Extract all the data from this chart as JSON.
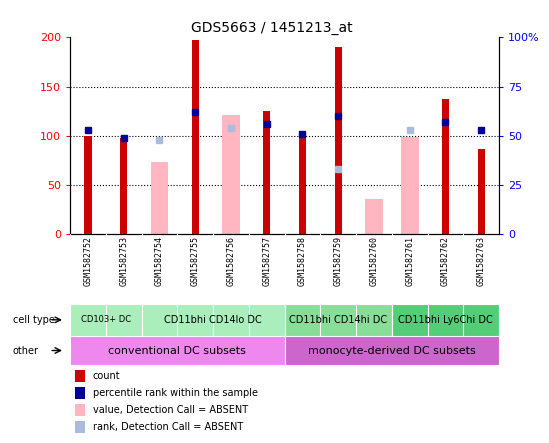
{
  "title": "GDS5663 / 1451213_at",
  "samples": [
    "GSM1582752",
    "GSM1582753",
    "GSM1582754",
    "GSM1582755",
    "GSM1582756",
    "GSM1582757",
    "GSM1582758",
    "GSM1582759",
    "GSM1582760",
    "GSM1582761",
    "GSM1582762",
    "GSM1582763"
  ],
  "count_values": [
    100,
    98,
    null,
    197,
    null,
    125,
    101,
    190,
    null,
    null,
    137,
    87
  ],
  "percentile_values": [
    53,
    49,
    null,
    62,
    null,
    56,
    51,
    60,
    null,
    null,
    57,
    53
  ],
  "absent_value_values": [
    null,
    null,
    73,
    null,
    121,
    null,
    null,
    null,
    36,
    99,
    null,
    null
  ],
  "absent_rank_values": [
    null,
    null,
    48,
    null,
    54,
    null,
    null,
    33,
    null,
    53,
    null,
    null
  ],
  "count_color": "#CC0000",
  "percentile_color": "#000099",
  "absent_value_color": "#FFB6C1",
  "absent_rank_color": "#AABBDD",
  "ylim_left": [
    0,
    200
  ],
  "ylim_right": [
    0,
    100
  ],
  "yticks_left": [
    0,
    50,
    100,
    150,
    200
  ],
  "ytick_labels_left": [
    "0",
    "50",
    "100",
    "150",
    "200"
  ],
  "yticks_right": [
    0,
    25,
    50,
    75,
    100
  ],
  "ytick_labels_right": [
    "0",
    "25",
    "50",
    "75",
    "100%"
  ],
  "cell_type_groups": [
    {
      "label": "CD103+ DC",
      "start": 0,
      "end": 1,
      "color": "#AAEEBB"
    },
    {
      "label": "CD11bhi CD14lo DC",
      "start": 2,
      "end": 5,
      "color": "#AAEEBB"
    },
    {
      "label": "CD11bhi CD14hi DC",
      "start": 6,
      "end": 8,
      "color": "#88DD99"
    },
    {
      "label": "CD11bhi Ly6Chi DC",
      "start": 9,
      "end": 11,
      "color": "#55CC77"
    }
  ],
  "other_groups": [
    {
      "label": "conventional DC subsets",
      "start": 0,
      "end": 5,
      "color": "#EE88EE"
    },
    {
      "label": "monocyte-derived DC subsets",
      "start": 6,
      "end": 11,
      "color": "#CC66CC"
    }
  ],
  "legend_items": [
    {
      "label": "count",
      "color": "#CC0000"
    },
    {
      "label": "percentile rank within the sample",
      "color": "#000099"
    },
    {
      "label": "value, Detection Call = ABSENT",
      "color": "#FFB6C1"
    },
    {
      "label": "rank, Detection Call = ABSENT",
      "color": "#AABBDD"
    }
  ],
  "sample_bg_color": "#CCCCCC",
  "absent_bar_width": 0.5,
  "count_bar_width": 0.2
}
